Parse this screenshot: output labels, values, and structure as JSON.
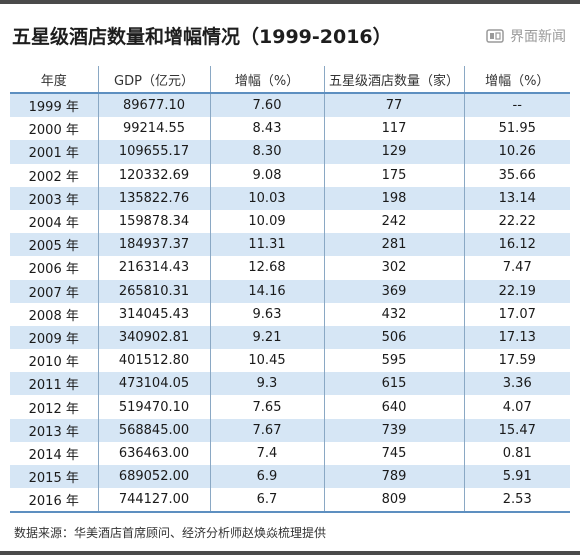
{
  "title": "五星级酒店数量和增幅情况（1999-2016）",
  "brand": {
    "name": "界面新闻",
    "logo_icon": "jiemian-logo-icon"
  },
  "table": {
    "headers": [
      "年度",
      "GDP（亿元）",
      "增幅（%）",
      "五星级酒店数量（家）",
      "增幅（%）"
    ],
    "rows": [
      [
        "1999 年",
        "89677.10",
        "7.60",
        "77",
        "--"
      ],
      [
        "2000 年",
        "99214.55",
        "8.43",
        "117",
        "51.95"
      ],
      [
        "2001 年",
        "109655.17",
        "8.30",
        "129",
        "10.26"
      ],
      [
        "2002 年",
        "120332.69",
        "9.08",
        "175",
        "35.66"
      ],
      [
        "2003 年",
        "135822.76",
        "10.03",
        "198",
        "13.14"
      ],
      [
        "2004 年",
        "159878.34",
        "10.09",
        "242",
        "22.22"
      ],
      [
        "2005 年",
        "184937.37",
        "11.31",
        "281",
        "16.12"
      ],
      [
        "2006 年",
        "216314.43",
        "12.68",
        "302",
        "7.47"
      ],
      [
        "2007 年",
        "265810.31",
        "14.16",
        "369",
        "22.19"
      ],
      [
        "2008 年",
        "314045.43",
        "9.63",
        "432",
        "17.07"
      ],
      [
        "2009 年",
        "340902.81",
        "9.21",
        "506",
        "17.13"
      ],
      [
        "2010 年",
        "401512.80",
        "10.45",
        "595",
        "17.59"
      ],
      [
        "2011 年",
        "473104.05",
        "9.3",
        "615",
        "3.36"
      ],
      [
        "2012 年",
        "519470.10",
        "7.65",
        "640",
        "4.07"
      ],
      [
        "2013 年",
        "568845.00",
        "7.67",
        "739",
        "15.47"
      ],
      [
        "2014 年",
        "636463.00",
        "7.4",
        "745",
        "0.81"
      ],
      [
        "2015 年",
        "689052.00",
        "6.9",
        "789",
        "5.91"
      ],
      [
        "2016 年",
        "744127.00",
        "6.7",
        "809",
        "2.53"
      ]
    ]
  },
  "source": "数据来源：华美酒店首席顾问、经济分析师赵焕焱梳理提供",
  "colors": {
    "stripe": "#d6e6f5",
    "rule": "#5d8fc0",
    "divider": "#8aa8c4",
    "bar": "#4a4a4a"
  }
}
